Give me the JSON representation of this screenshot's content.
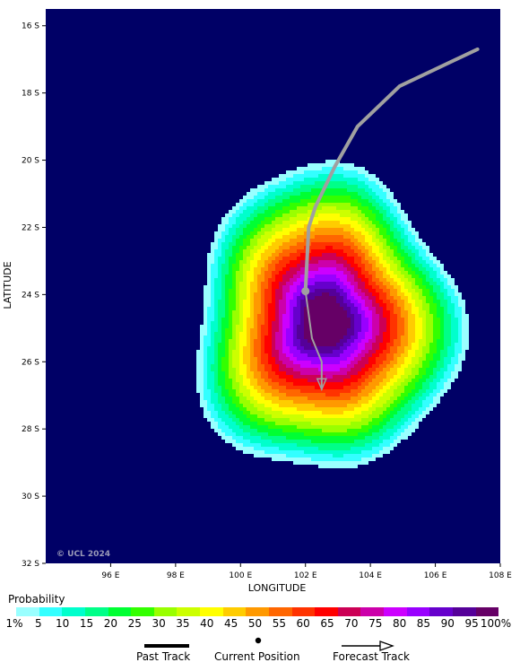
{
  "map": {
    "lon_range": [
      94,
      108
    ],
    "lat_range": [
      -32,
      -15.5
    ],
    "lon_ticks": [
      {
        "value": 96,
        "label": "96 E"
      },
      {
        "value": 98,
        "label": "98 E"
      },
      {
        "value": 100,
        "label": "100 E"
      },
      {
        "value": 102,
        "label": "102 E"
      },
      {
        "value": 104,
        "label": "104 E"
      },
      {
        "value": 106,
        "label": "106 E"
      },
      {
        "value": 108,
        "label": "108 E"
      }
    ],
    "lat_ticks": [
      {
        "value": -16,
        "label": "16 S"
      },
      {
        "value": -18,
        "label": "18 S"
      },
      {
        "value": -20,
        "label": "20 S"
      },
      {
        "value": -22,
        "label": "22 S"
      },
      {
        "value": -24,
        "label": "24 S"
      },
      {
        "value": -26,
        "label": "26 S"
      },
      {
        "value": -28,
        "label": "28 S"
      },
      {
        "value": -30,
        "label": "30 S"
      },
      {
        "value": -32,
        "label": "32 S"
      }
    ],
    "xlabel": "LONGITUDE",
    "ylabel": "LATITUDE",
    "copyright": "© UCL 2024",
    "background_color": "#000066",
    "track_color": "#a0a0a0",
    "past_track": [
      [
        107.3,
        -16.7
      ],
      [
        104.9,
        -17.8
      ],
      [
        103.6,
        -19.0
      ],
      [
        102.9,
        -20.2
      ],
      [
        102.3,
        -21.4
      ],
      [
        102.1,
        -22.0
      ],
      [
        102.0,
        -23.9
      ]
    ],
    "current_position": [
      102.0,
      -23.9
    ],
    "forecast_track": [
      [
        102.0,
        -23.9
      ],
      [
        102.2,
        -25.3
      ],
      [
        102.5,
        -26.0
      ],
      [
        102.5,
        -26.8
      ]
    ],
    "probability_field": {
      "center": [
        102.6,
        -24.8
      ],
      "rx": 4.1,
      "ry": 9.1
    }
  },
  "legend": {
    "title": "Probability",
    "labels": [
      "1%",
      "5",
      "10",
      "15",
      "20",
      "25",
      "30",
      "35",
      "40",
      "45",
      "50",
      "55",
      "60",
      "65",
      "70",
      "75",
      "80",
      "85",
      "90",
      "95",
      "100%"
    ],
    "colors": [
      "#99ffff",
      "#33ffff",
      "#00ffcc",
      "#00ff88",
      "#00ff33",
      "#33ff00",
      "#99ff00",
      "#ccff00",
      "#ffff00",
      "#ffcc00",
      "#ff9900",
      "#ff6600",
      "#ff3300",
      "#ff0000",
      "#cc0055",
      "#cc00aa",
      "#cc00ff",
      "#9900ff",
      "#6600cc",
      "#550099",
      "#660066"
    ]
  },
  "key": {
    "past_track": "Past Track",
    "current_position": "Current Position",
    "forecast_track": "Forecast Track"
  }
}
